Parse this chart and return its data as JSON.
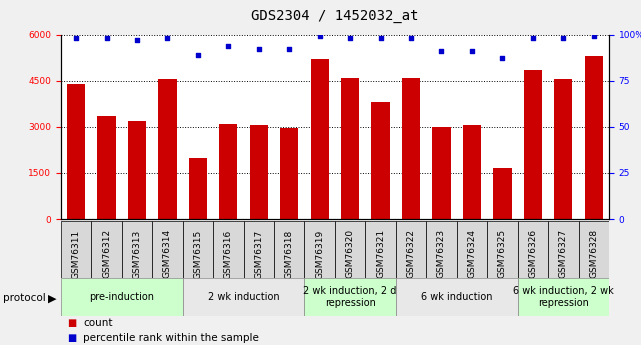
{
  "title": "GDS2304 / 1452032_at",
  "samples": [
    "GSM76311",
    "GSM76312",
    "GSM76313",
    "GSM76314",
    "GSM76315",
    "GSM76316",
    "GSM76317",
    "GSM76318",
    "GSM76319",
    "GSM76320",
    "GSM76321",
    "GSM76322",
    "GSM76323",
    "GSM76324",
    "GSM76325",
    "GSM76326",
    "GSM76327",
    "GSM76328"
  ],
  "counts": [
    4400,
    3350,
    3200,
    4550,
    2000,
    3100,
    3050,
    2950,
    5200,
    4600,
    3800,
    4600,
    3000,
    3050,
    1650,
    4850,
    4550,
    5300
  ],
  "percentiles": [
    98,
    98,
    97,
    98,
    89,
    94,
    92,
    92,
    99,
    98,
    98,
    98,
    91,
    91,
    87,
    98,
    98,
    99
  ],
  "ylim_left": [
    0,
    6000
  ],
  "ylim_right": [
    0,
    100
  ],
  "yticks_left": [
    0,
    1500,
    3000,
    4500,
    6000
  ],
  "yticks_right": [
    0,
    25,
    50,
    75,
    100
  ],
  "bar_color": "#cc0000",
  "dot_color": "#0000cc",
  "fig_bg_color": "#f0f0f0",
  "plot_bg_color": "#ffffff",
  "protocol_groups": [
    {
      "label": "pre-induction",
      "start": 0,
      "end": 4,
      "color": "#ccffcc"
    },
    {
      "label": "2 wk induction",
      "start": 4,
      "end": 8,
      "color": "#e8e8e8"
    },
    {
      "label": "2 wk induction, 2 d\nrepression",
      "start": 8,
      "end": 11,
      "color": "#ccffcc"
    },
    {
      "label": "6 wk induction",
      "start": 11,
      "end": 15,
      "color": "#e8e8e8"
    },
    {
      "label": "6 wk induction, 2 wk\nrepression",
      "start": 15,
      "end": 18,
      "color": "#ccffcc"
    }
  ],
  "legend_count_label": "count",
  "legend_pct_label": "percentile rank within the sample",
  "title_fontsize": 10,
  "tick_fontsize": 6.5,
  "proto_fontsize": 7,
  "legend_fontsize": 7.5
}
